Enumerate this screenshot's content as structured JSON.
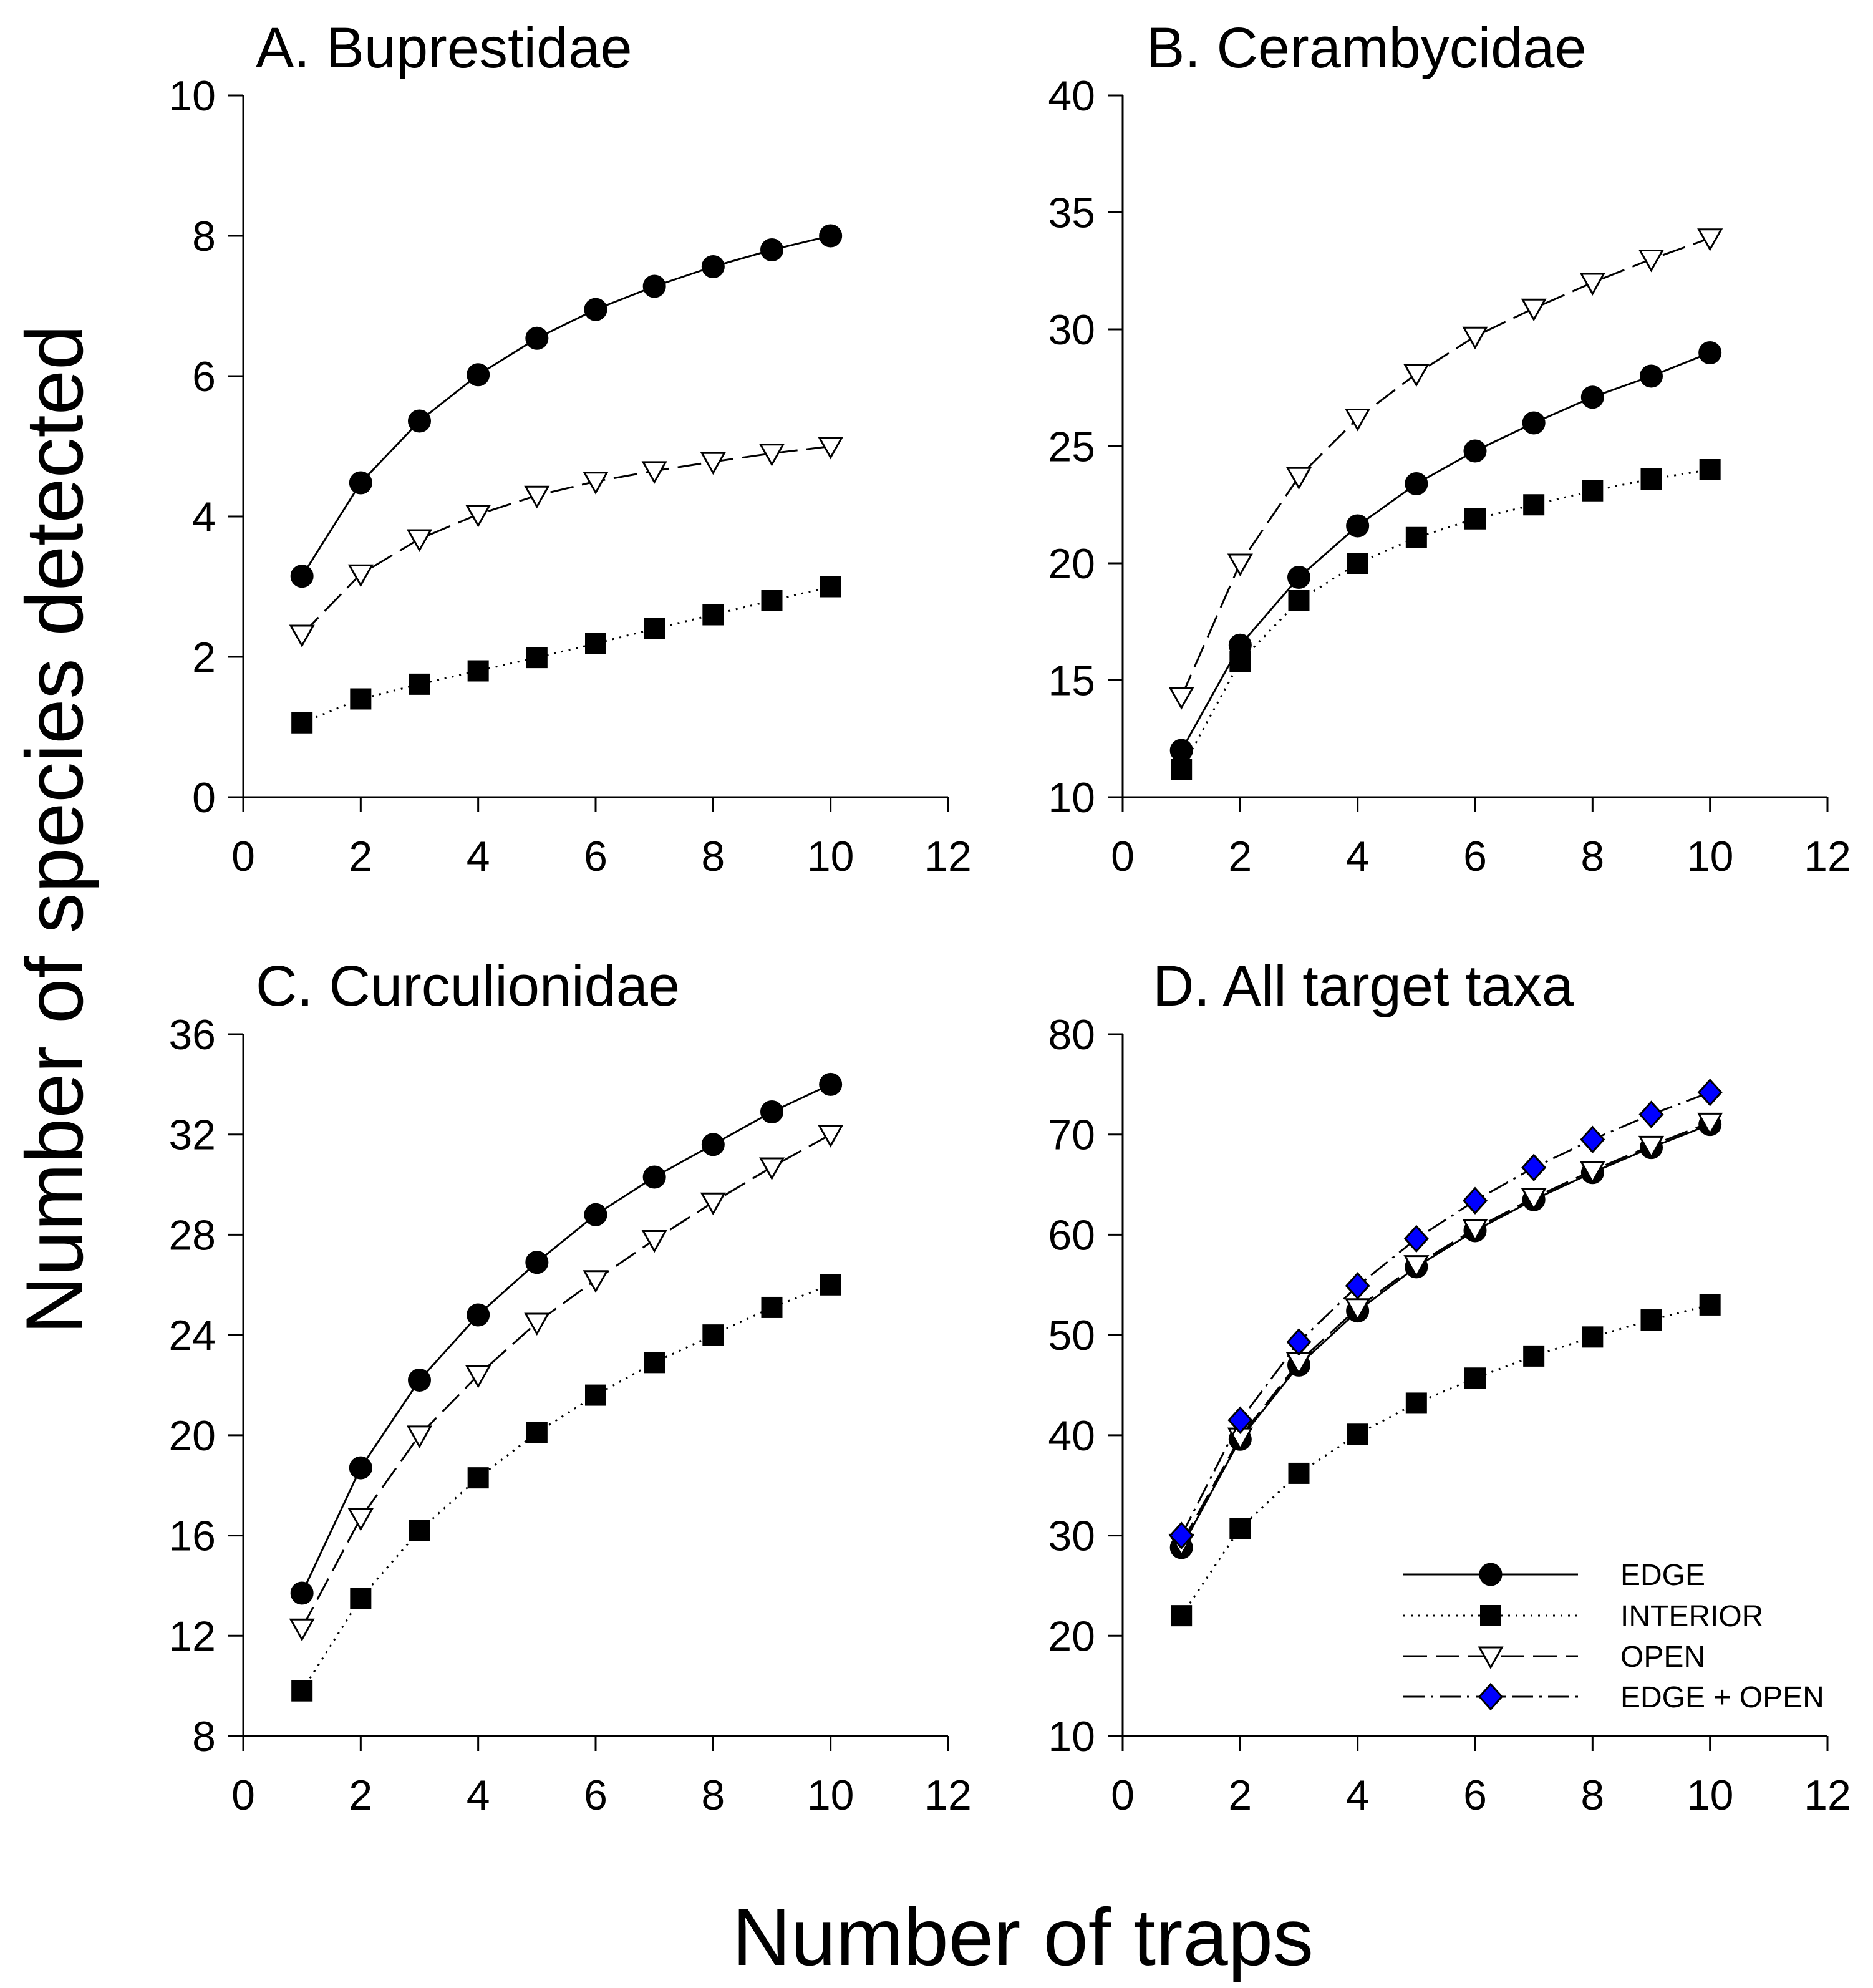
{
  "figure": {
    "ylabel": "Number of species detected",
    "xlabel": "Number of traps",
    "series_styles": {
      "EDGE": {
        "line": "solid",
        "marker": "circle",
        "fill": "#000000"
      },
      "INTERIOR": {
        "line": "dotted",
        "marker": "square",
        "fill": "#000000"
      },
      "OPEN": {
        "line": "dashed",
        "marker": "triangle-down",
        "fill": "#ffffff"
      },
      "EDGE + OPEN": {
        "line": "dashdot",
        "marker": "diamond",
        "fill": "#0000ff"
      }
    },
    "legend": {
      "placement": "bottom-right of panel D",
      "entries": [
        "EDGE",
        "INTERIOR",
        "OPEN",
        "EDGE + OPEN"
      ]
    }
  },
  "chart_data": [
    {
      "type": "line",
      "title": "A. Buprestidae",
      "xlabel": "Number of traps",
      "ylabel": "Number of species detected",
      "xlim": [
        0,
        12
      ],
      "ylim": [
        0,
        10
      ],
      "xticks": [
        0,
        2,
        4,
        6,
        8,
        10,
        12
      ],
      "yticks": [
        0,
        2,
        4,
        6,
        8,
        10
      ],
      "x": [
        1,
        2,
        3,
        4,
        5,
        6,
        7,
        8,
        9,
        10
      ],
      "series": [
        {
          "name": "EDGE",
          "values": [
            3.15,
            4.48,
            5.36,
            6.02,
            6.54,
            6.95,
            7.28,
            7.56,
            7.8,
            8.0
          ]
        },
        {
          "name": "OPEN",
          "values": [
            2.32,
            3.18,
            3.68,
            4.03,
            4.3,
            4.5,
            4.65,
            4.78,
            4.9,
            5.0
          ]
        },
        {
          "name": "INTERIOR",
          "values": [
            1.06,
            1.4,
            1.61,
            1.8,
            1.99,
            2.19,
            2.4,
            2.6,
            2.8,
            3.0
          ]
        }
      ]
    },
    {
      "type": "line",
      "title": "B. Cerambycidae",
      "xlabel": "Number of traps",
      "ylabel": "Number of species detected",
      "xlim": [
        0,
        12
      ],
      "ylim": [
        10,
        40
      ],
      "xticks": [
        0,
        2,
        4,
        6,
        8,
        10,
        12
      ],
      "yticks": [
        10,
        15,
        20,
        25,
        30,
        35,
        40
      ],
      "x": [
        1,
        2,
        3,
        4,
        5,
        6,
        7,
        8,
        9,
        10
      ],
      "series": [
        {
          "name": "EDGE",
          "values": [
            12.0,
            16.5,
            19.4,
            21.6,
            23.4,
            24.8,
            26.0,
            27.1,
            28.0,
            29.0
          ]
        },
        {
          "name": "OPEN",
          "values": [
            14.3,
            20.0,
            23.7,
            26.2,
            28.1,
            29.7,
            30.9,
            32.0,
            33.0,
            33.9
          ]
        },
        {
          "name": "INTERIOR",
          "values": [
            11.2,
            15.8,
            18.4,
            20.0,
            21.1,
            21.9,
            22.5,
            23.1,
            23.6,
            24.0
          ]
        }
      ]
    },
    {
      "type": "line",
      "title": "C. Curculionidae",
      "xlabel": "Number of traps",
      "ylabel": "Number of species detected",
      "xlim": [
        0,
        12
      ],
      "ylim": [
        8,
        36
      ],
      "xticks": [
        0,
        2,
        4,
        6,
        8,
        10,
        12
      ],
      "yticks": [
        8,
        12,
        16,
        20,
        24,
        28,
        32,
        36
      ],
      "x": [
        1,
        2,
        3,
        4,
        5,
        6,
        7,
        8,
        9,
        10
      ],
      "series": [
        {
          "name": "EDGE",
          "values": [
            13.7,
            18.7,
            22.2,
            24.8,
            26.9,
            28.8,
            30.3,
            31.6,
            32.9,
            34.0
          ]
        },
        {
          "name": "OPEN",
          "values": [
            12.3,
            16.7,
            20.0,
            22.4,
            24.5,
            26.2,
            27.8,
            29.3,
            30.7,
            32.0
          ]
        },
        {
          "name": "INTERIOR",
          "values": [
            9.8,
            13.5,
            16.2,
            18.3,
            20.1,
            21.6,
            22.9,
            24.0,
            25.1,
            26.0
          ]
        }
      ]
    },
    {
      "type": "line",
      "title": "D. All target taxa",
      "xlabel": "Number of traps",
      "ylabel": "Number of species detected",
      "xlim": [
        0,
        12
      ],
      "ylim": [
        10,
        80
      ],
      "xticks": [
        0,
        2,
        4,
        6,
        8,
        10,
        12
      ],
      "yticks": [
        10,
        20,
        30,
        40,
        50,
        60,
        70,
        80
      ],
      "x": [
        1,
        2,
        3,
        4,
        5,
        6,
        7,
        8,
        9,
        10
      ],
      "series": [
        {
          "name": "EDGE",
          "values": [
            28.8,
            39.6,
            47.0,
            52.4,
            56.8,
            60.4,
            63.5,
            66.2,
            68.7,
            71.0
          ]
        },
        {
          "name": "INTERIOR",
          "values": [
            22.0,
            30.7,
            36.2,
            40.1,
            43.2,
            45.7,
            47.9,
            49.8,
            51.5,
            53.0
          ]
        },
        {
          "name": "OPEN",
          "values": [
            29.2,
            39.8,
            47.3,
            52.7,
            57.0,
            60.6,
            63.7,
            66.4,
            68.9,
            71.2
          ]
        },
        {
          "name": "EDGE + OPEN",
          "values": [
            30.0,
            41.5,
            49.3,
            54.9,
            59.6,
            63.4,
            66.7,
            69.5,
            72.0,
            74.2
          ]
        }
      ]
    }
  ]
}
